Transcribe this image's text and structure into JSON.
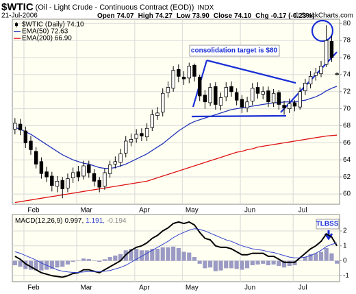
{
  "chart_data": [
    {
      "type": "candlestick",
      "title": "$WTIC",
      "subtitle": "(Oil - Light Crude - Continuous Contract (EOD))",
      "exchange": "INDX",
      "date": "21-Jul-2006",
      "quote": [
        [
          "Open",
          "74.07"
        ],
        [
          "High",
          "74.27"
        ],
        [
          "Low",
          "73.90"
        ],
        [
          "Close",
          "74.10"
        ],
        [
          "Chg",
          "-0.17 (-0.23%)"
        ]
      ],
      "credit": "© StockCharts.com",
      "annotations": [
        "consolidation target is $80"
      ],
      "categories": [
        null,
        null,
        null,
        "Feb",
        null,
        null,
        null,
        null,
        null,
        null,
        null,
        null,
        null,
        "Mar",
        null,
        null,
        null,
        null,
        null,
        null,
        null,
        null,
        null,
        null,
        "Apr",
        null,
        null,
        null,
        null,
        null,
        null,
        null,
        null,
        "May",
        null,
        null,
        null,
        null,
        null,
        null,
        null,
        null,
        null,
        null,
        "Jun",
        null,
        null,
        null,
        null,
        null,
        null,
        null,
        null,
        null,
        "Jul",
        null,
        null,
        null,
        null,
        null,
        null,
        null
      ],
      "series": [
        {
          "name": "$WTIC (Daily) 74.10",
          "type": "candlestick",
          "color": "#000000",
          "open": [
            67.6,
            68.2,
            67.4,
            66.2,
            65.0,
            63.8,
            62.6,
            62.1,
            60.9,
            61.6,
            60.7,
            61.9,
            62.6,
            62.1,
            63.4,
            62.4,
            61.6,
            60.9,
            62.4,
            63.5,
            63.7,
            64.8,
            66.1,
            66.5,
            67.1,
            66.7,
            67.8,
            69.2,
            69.6,
            71.9,
            72.4,
            74.6,
            73.7,
            73.6,
            75.1,
            73.7,
            71.6,
            70.7,
            72.6,
            70.4,
            71.4,
            72.6,
            71.9,
            71.1,
            70.1,
            70.9,
            72.5,
            71.7,
            72.1,
            70.7,
            71.9,
            70.4,
            70.0,
            70.7,
            70.2,
            72.1,
            72.9,
            73.9,
            74.1,
            75.2,
            77.9,
            74.07
          ],
          "high": [
            68.9,
            68.8,
            67.9,
            66.8,
            65.5,
            64.3,
            63.2,
            62.6,
            62.1,
            62.0,
            62.4,
            63.1,
            63.3,
            63.9,
            63.9,
            62.9,
            62.0,
            63.0,
            63.9,
            64.4,
            65.3,
            66.8,
            67.1,
            67.6,
            67.7,
            68.3,
            69.9,
            70.2,
            72.4,
            73.2,
            75.0,
            75.2,
            74.4,
            75.4,
            75.3,
            74.0,
            72.2,
            73.0,
            73.1,
            71.9,
            73.1,
            73.2,
            72.4,
            71.6,
            71.4,
            73.0,
            73.1,
            72.6,
            72.6,
            72.3,
            72.2,
            70.9,
            71.2,
            71.0,
            72.5,
            73.5,
            74.4,
            74.8,
            75.6,
            79.8,
            78.6,
            74.27
          ],
          "low": [
            67.0,
            66.9,
            65.4,
            64.6,
            63.0,
            61.8,
            61.4,
            60.3,
            60.2,
            59.5,
            60.2,
            61.3,
            61.5,
            61.7,
            61.9,
            60.9,
            60.2,
            60.5,
            61.9,
            63.0,
            63.2,
            64.3,
            65.6,
            66.0,
            66.2,
            66.2,
            67.4,
            68.7,
            69.1,
            71.3,
            72.0,
            73.1,
            72.8,
            73.0,
            73.2,
            70.9,
            70.0,
            70.3,
            69.9,
            69.8,
            70.9,
            71.4,
            70.4,
            69.5,
            69.6,
            70.4,
            71.2,
            71.1,
            70.2,
            70.2,
            69.9,
            69.3,
            69.5,
            69.7,
            69.9,
            71.6,
            72.4,
            73.3,
            73.7,
            74.9,
            75.5,
            73.9
          ],
          "close": [
            68.3,
            67.5,
            66.0,
            65.2,
            63.5,
            62.4,
            62.0,
            61.0,
            61.5,
            60.6,
            61.8,
            62.5,
            62.0,
            63.3,
            62.5,
            61.5,
            60.8,
            62.5,
            63.4,
            63.8,
            64.7,
            66.2,
            66.4,
            67.0,
            66.8,
            67.7,
            69.3,
            69.5,
            71.8,
            72.5,
            74.5,
            73.8,
            73.5,
            75.0,
            73.8,
            71.5,
            70.8,
            72.5,
            70.5,
            71.3,
            72.5,
            72.0,
            71.0,
            70.2,
            70.8,
            72.4,
            71.8,
            72.0,
            70.8,
            71.8,
            70.5,
            70.1,
            70.6,
            70.3,
            72.0,
            73.0,
            73.8,
            74.2,
            75.0,
            78.0,
            76.0,
            74.1
          ]
        },
        {
          "name": "EMA(50) 72.63",
          "type": "line",
          "color": "#2233bb",
          "values": [
            67.8,
            67.6,
            67.3,
            67.0,
            66.6,
            66.2,
            65.8,
            65.4,
            65.0,
            64.6,
            64.3,
            64.0,
            63.8,
            63.6,
            63.5,
            63.3,
            63.1,
            63.0,
            63.0,
            63.1,
            63.3,
            63.5,
            63.8,
            64.1,
            64.4,
            64.7,
            65.1,
            65.5,
            65.9,
            66.4,
            66.9,
            67.4,
            67.8,
            68.2,
            68.5,
            68.7,
            68.9,
            69.1,
            69.3,
            69.5,
            69.7,
            69.9,
            70.0,
            70.1,
            70.2,
            70.3,
            70.4,
            70.5,
            70.6,
            70.7,
            70.7,
            70.8,
            70.8,
            70.8,
            70.9,
            71.0,
            71.2,
            71.4,
            71.7,
            72.1,
            72.4,
            72.63
          ]
        },
        {
          "name": "EMA(200) 66.90",
          "type": "line",
          "color": "#dd1111",
          "values": [
            59.0,
            59.1,
            59.2,
            59.3,
            59.4,
            59.5,
            59.6,
            59.7,
            59.8,
            59.9,
            60.0,
            60.1,
            60.2,
            60.3,
            60.4,
            60.5,
            60.6,
            60.7,
            60.8,
            60.9,
            61.0,
            61.1,
            61.2,
            61.3,
            61.4,
            61.5,
            61.7,
            61.9,
            62.1,
            62.3,
            62.5,
            62.7,
            62.9,
            63.1,
            63.3,
            63.5,
            63.7,
            63.9,
            64.1,
            64.3,
            64.5,
            64.7,
            64.9,
            65.0,
            65.2,
            65.3,
            65.5,
            65.6,
            65.7,
            65.8,
            65.9,
            66.0,
            66.1,
            66.2,
            66.3,
            66.4,
            66.5,
            66.6,
            66.7,
            66.8,
            66.85,
            66.9
          ]
        }
      ],
      "ylim": [
        58.8,
        80.5
      ],
      "yticks": [
        60,
        62,
        64,
        66,
        68,
        70,
        72,
        74,
        76,
        78,
        80
      ],
      "grid": true,
      "legend": "upper left"
    },
    {
      "type": "macd",
      "label": "MACD(12,26,9)",
      "readout": [
        "0.997,",
        "1.191,",
        "-0.194"
      ],
      "annotations": [
        "TLBSS"
      ],
      "categories": [
        null,
        null,
        null,
        "Feb",
        null,
        null,
        null,
        null,
        null,
        null,
        null,
        null,
        null,
        "Mar",
        null,
        null,
        null,
        null,
        null,
        null,
        null,
        null,
        null,
        null,
        "Apr",
        null,
        null,
        null,
        null,
        null,
        null,
        null,
        null,
        "May",
        null,
        null,
        null,
        null,
        null,
        null,
        null,
        null,
        null,
        null,
        "Jun",
        null,
        null,
        null,
        null,
        null,
        null,
        null,
        null,
        null,
        "Jul",
        null,
        null,
        null,
        null,
        null,
        null,
        null
      ],
      "series": [
        {
          "type": "bar",
          "color": "#9a9ac4",
          "values": [
            -0.3,
            -0.4,
            -0.55,
            -0.6,
            -0.65,
            -0.65,
            -0.6,
            -0.55,
            -0.45,
            -0.4,
            -0.25,
            -0.07,
            -0.02,
            0.15,
            0.12,
            0.02,
            -0.07,
            0.1,
            0.25,
            0.35,
            0.45,
            0.7,
            0.8,
            0.8,
            0.7,
            0.7,
            0.8,
            0.8,
            0.9,
            0.9,
            0.95,
            0.85,
            0.6,
            0.55,
            0.25,
            -0.2,
            -0.5,
            -0.45,
            -0.7,
            -0.65,
            -0.5,
            -0.5,
            -0.55,
            -0.6,
            -0.5,
            -0.3,
            -0.25,
            -0.2,
            -0.3,
            -0.25,
            -0.35,
            -0.45,
            -0.35,
            -0.3,
            0.0,
            0.25,
            0.45,
            0.5,
            0.6,
            0.85,
            0.5,
            -0.194
          ]
        },
        {
          "type": "line",
          "color": "#000000",
          "line_width": 2,
          "values": [
            0.3,
            0.1,
            -0.2,
            -0.4,
            -0.6,
            -0.8,
            -0.9,
            -1.0,
            -1.05,
            -1.1,
            -1.0,
            -0.85,
            -0.8,
            -0.6,
            -0.6,
            -0.7,
            -0.8,
            -0.6,
            -0.4,
            -0.2,
            0.0,
            0.4,
            0.7,
            0.9,
            1.0,
            1.2,
            1.5,
            1.7,
            2.0,
            2.2,
            2.5,
            2.6,
            2.5,
            2.6,
            2.4,
            1.9,
            1.5,
            1.4,
            1.0,
            0.9,
            0.9,
            0.8,
            0.6,
            0.4,
            0.4,
            0.5,
            0.5,
            0.5,
            0.3,
            0.3,
            0.1,
            -0.1,
            -0.1,
            -0.1,
            0.2,
            0.5,
            0.8,
            1.0,
            1.3,
            1.8,
            1.6,
            0.997
          ]
        },
        {
          "type": "line",
          "color": "#3344cc",
          "line_width": 1,
          "values": [
            0.6,
            0.5,
            0.35,
            0.2,
            0.05,
            -0.15,
            -0.3,
            -0.45,
            -0.6,
            -0.7,
            -0.75,
            -0.78,
            -0.78,
            -0.75,
            -0.72,
            -0.72,
            -0.73,
            -0.7,
            -0.65,
            -0.55,
            -0.45,
            -0.3,
            -0.1,
            0.1,
            0.3,
            0.5,
            0.7,
            0.9,
            1.1,
            1.3,
            1.55,
            1.75,
            1.9,
            2.05,
            2.15,
            2.1,
            2.0,
            1.85,
            1.7,
            1.55,
            1.4,
            1.3,
            1.15,
            1.0,
            0.9,
            0.8,
            0.75,
            0.7,
            0.6,
            0.55,
            0.45,
            0.35,
            0.25,
            0.2,
            0.2,
            0.25,
            0.35,
            0.5,
            0.7,
            0.95,
            1.1,
            1.191
          ]
        }
      ],
      "ylim": [
        -1.4,
        3.1
      ],
      "yticks": [
        -1,
        0,
        1,
        2
      ],
      "grid": true
    }
  ]
}
